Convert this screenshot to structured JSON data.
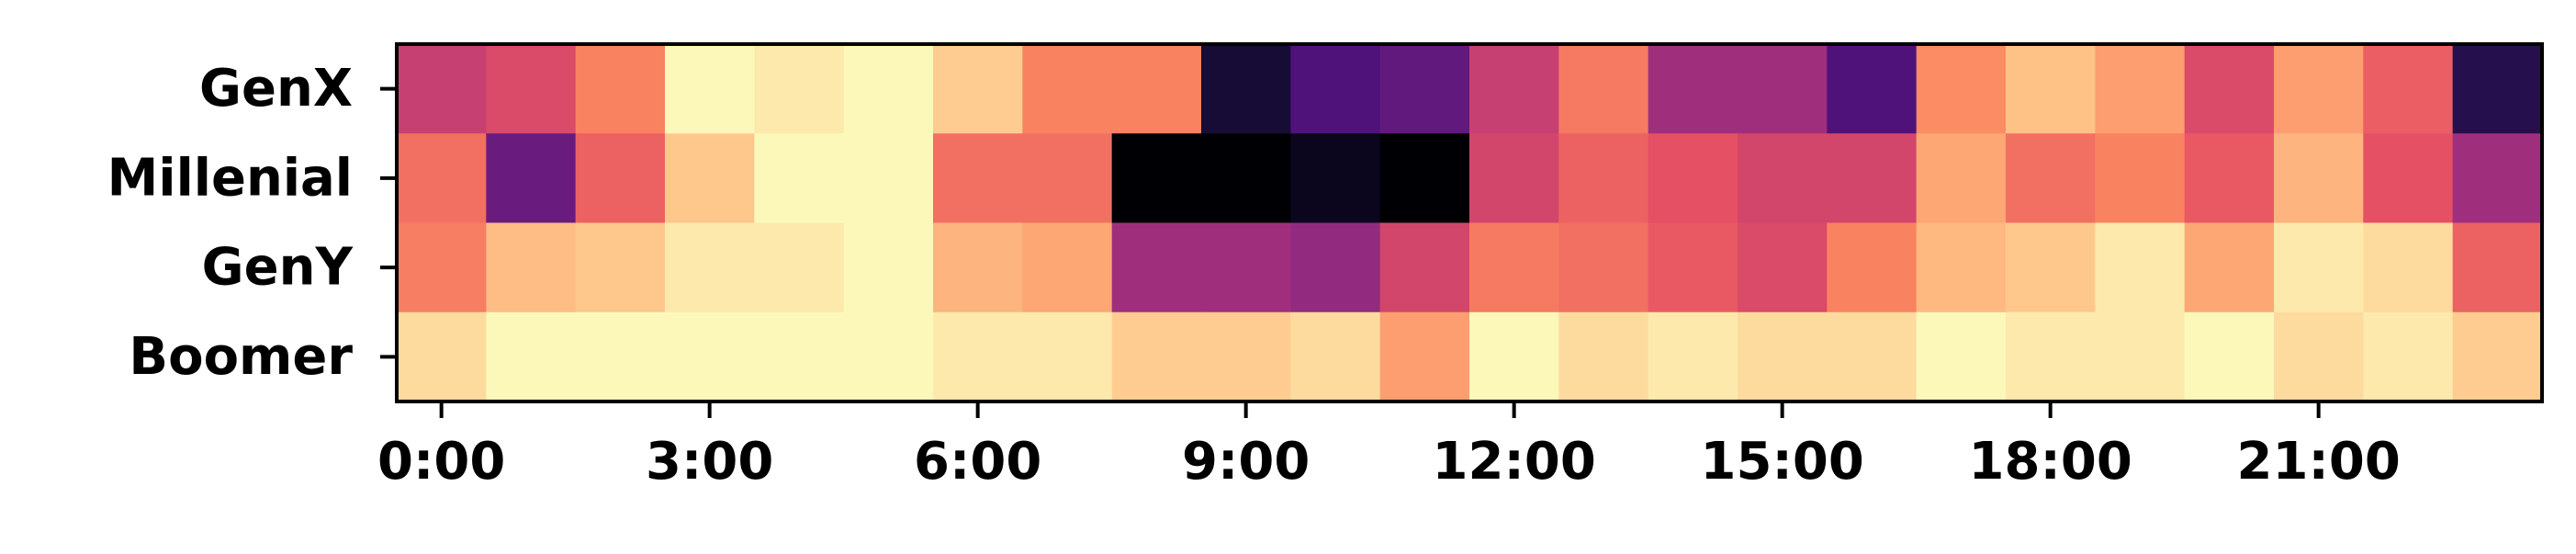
{
  "chart_data": {
    "type": "heatmap",
    "colormap": "magma",
    "title": "",
    "xlabel": "",
    "ylabel": "",
    "rows": [
      "GenX",
      "Millenial",
      "GenY",
      "Boomer"
    ],
    "columns": [
      0,
      1,
      2,
      3,
      4,
      5,
      6,
      7,
      8,
      9,
      10,
      11,
      12,
      13,
      14,
      15,
      16,
      17,
      18,
      19,
      20,
      21,
      22,
      23
    ],
    "x_ticks": [
      {
        "hour": 0,
        "label": "0:00"
      },
      {
        "hour": 3,
        "label": "3:00"
      },
      {
        "hour": 6,
        "label": "6:00"
      },
      {
        "hour": 9,
        "label": "9:00"
      },
      {
        "hour": 12,
        "label": "12:00"
      },
      {
        "hour": 15,
        "label": "15:00"
      },
      {
        "hour": 18,
        "label": "18:00"
      },
      {
        "hour": 21,
        "label": "21:00"
      }
    ],
    "value_range": [
      0,
      1
    ],
    "values": [
      [
        0.55,
        0.6,
        0.74,
        0.99,
        0.96,
        0.99,
        0.9,
        0.74,
        0.74,
        0.1,
        0.25,
        0.3,
        0.55,
        0.72,
        0.45,
        0.45,
        0.25,
        0.76,
        0.88,
        0.8,
        0.6,
        0.8,
        0.66,
        0.15
      ],
      [
        0.7,
        0.32,
        0.67,
        0.89,
        0.99,
        0.99,
        0.7,
        0.7,
        0.0,
        0.0,
        0.05,
        0.0,
        0.58,
        0.67,
        0.63,
        0.58,
        0.58,
        0.82,
        0.7,
        0.74,
        0.65,
        0.85,
        0.63,
        0.45
      ],
      [
        0.73,
        0.87,
        0.89,
        0.96,
        0.96,
        0.99,
        0.85,
        0.82,
        0.45,
        0.45,
        0.42,
        0.58,
        0.72,
        0.7,
        0.65,
        0.6,
        0.74,
        0.86,
        0.89,
        0.96,
        0.82,
        0.96,
        0.93,
        0.67
      ],
      [
        0.93,
        0.99,
        0.99,
        0.99,
        0.99,
        0.99,
        0.96,
        0.96,
        0.9,
        0.9,
        0.93,
        0.8,
        0.99,
        0.93,
        0.96,
        0.93,
        0.93,
        0.99,
        0.96,
        0.96,
        0.99,
        0.93,
        0.96,
        0.9
      ]
    ]
  }
}
